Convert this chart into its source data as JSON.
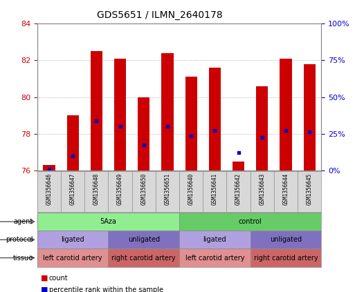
{
  "title": "GDS5651 / ILMN_2640178",
  "samples": [
    "GSM1356646",
    "GSM1356647",
    "GSM1356648",
    "GSM1356649",
    "GSM1356650",
    "GSM1356651",
    "GSM1356640",
    "GSM1356641",
    "GSM1356642",
    "GSM1356643",
    "GSM1356644",
    "GSM1356645"
  ],
  "red_values": [
    76.3,
    79.0,
    82.5,
    82.1,
    80.0,
    82.4,
    81.1,
    81.6,
    76.5,
    80.6,
    82.1,
    81.8
  ],
  "blue_values": [
    76.1,
    76.8,
    78.7,
    78.4,
    77.4,
    78.4,
    77.9,
    78.2,
    77.0,
    77.8,
    78.2,
    78.1
  ],
  "ymin": 76,
  "ymax": 84,
  "y_left_ticks": [
    76,
    78,
    80,
    82,
    84
  ],
  "y_right_ticks": [
    0,
    25,
    50,
    75,
    100
  ],
  "bar_color": "#cc0000",
  "dot_color": "#0000cc",
  "bar_bottom": 76,
  "agent_groups": [
    {
      "label": "5Aza",
      "start": 0,
      "end": 6,
      "color": "#90ee90"
    },
    {
      "label": "control",
      "start": 6,
      "end": 12,
      "color": "#66cc66"
    }
  ],
  "protocol_groups": [
    {
      "label": "ligated",
      "start": 0,
      "end": 3,
      "color": "#b0a0e0"
    },
    {
      "label": "unligated",
      "start": 3,
      "end": 6,
      "color": "#8070c0"
    },
    {
      "label": "ligated",
      "start": 6,
      "end": 9,
      "color": "#b0a0e0"
    },
    {
      "label": "unligated",
      "start": 9,
      "end": 12,
      "color": "#8070c0"
    }
  ],
  "tissue_groups": [
    {
      "label": "left carotid artery",
      "start": 0,
      "end": 3,
      "color": "#e09090"
    },
    {
      "label": "right carotid artery",
      "start": 3,
      "end": 6,
      "color": "#cc6666"
    },
    {
      "label": "left carotid artery",
      "start": 6,
      "end": 9,
      "color": "#e09090"
    },
    {
      "label": "right carotid artery",
      "start": 9,
      "end": 12,
      "color": "#cc6666"
    }
  ],
  "row_labels": [
    "agent",
    "protocol",
    "tissue"
  ],
  "legend_items": [
    {
      "color": "#cc0000",
      "label": "count"
    },
    {
      "color": "#0000cc",
      "label": "percentile rank within the sample"
    }
  ],
  "grid_color": "#aaaaaa",
  "bg_color": "#ffffff",
  "plot_bg": "#ffffff",
  "spine_color": "#888888"
}
